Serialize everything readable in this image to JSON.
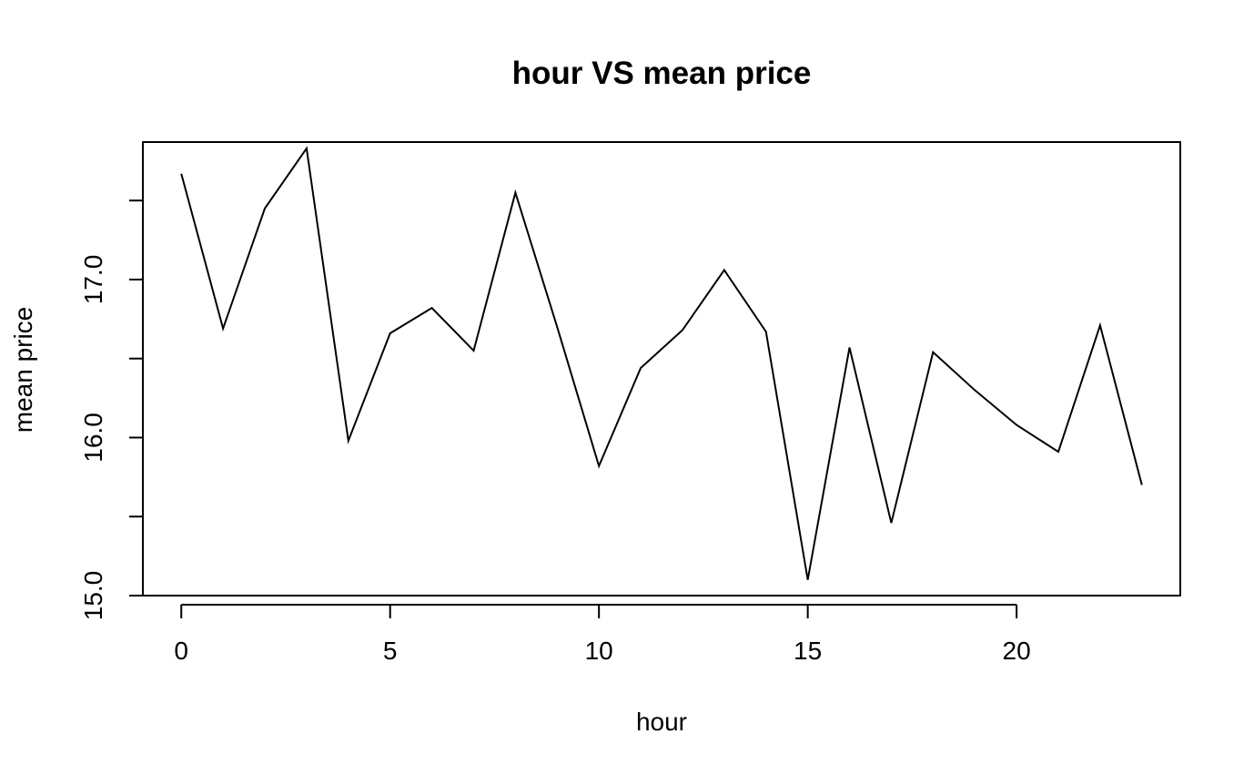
{
  "chart_data": {
    "type": "line",
    "title": "hour VS mean price",
    "xlabel": "hour",
    "ylabel": "mean price",
    "x": [
      0,
      1,
      2,
      3,
      4,
      5,
      6,
      7,
      8,
      9,
      10,
      11,
      12,
      13,
      14,
      15,
      16,
      17,
      18,
      19,
      20,
      21,
      22,
      23
    ],
    "series": [
      {
        "values": [
          17.67,
          16.69,
          17.45,
          17.83,
          15.98,
          16.66,
          16.82,
          16.55,
          17.55,
          16.7,
          15.82,
          16.44,
          16.68,
          17.06,
          16.67,
          15.1,
          16.57,
          15.46,
          16.54,
          16.3,
          16.08,
          15.91,
          16.71,
          15.7
        ]
      }
    ],
    "xlim": [
      -0.92,
      23.92
    ],
    "ylim": [
      15.0,
      17.87
    ],
    "x_ticks": [
      0,
      5,
      10,
      15,
      20
    ],
    "y_ticks": [
      15.0,
      15.5,
      16.0,
      16.5,
      17.0,
      17.5
    ],
    "y_tick_labels": [
      "15.0",
      "",
      "16.0",
      "",
      "17.0",
      ""
    ],
    "grid": false,
    "line_color": "#000000"
  }
}
